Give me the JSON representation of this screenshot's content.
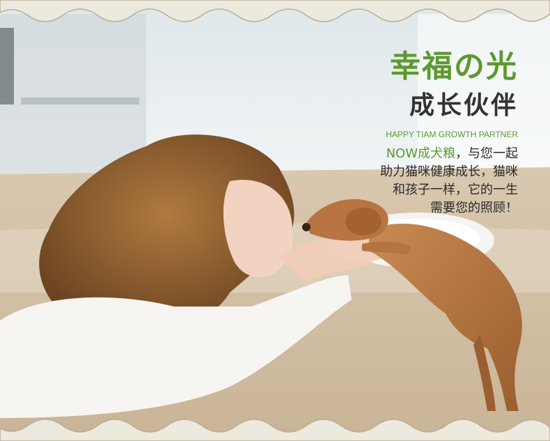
{
  "headline": {
    "title": "幸福の光",
    "subtitle": "成长伙伴",
    "tagline": "HAPPY TIAM GROWTH PARTNER"
  },
  "description": {
    "highlight": "NOW成犬粮",
    "line1_rest": "，与您一起",
    "line2": "助力猫咪健康成长，猫咪",
    "line3": "和孩子一样，它的一生",
    "line4": "需要您的照顾！"
  },
  "colors": {
    "accent_green": "#5c9a2d",
    "text_dark": "#333333",
    "frame_beige": "#ece9df"
  },
  "photo": {
    "subject": "girl kissing puppy paw",
    "icon": "photo-girl-puppy"
  }
}
